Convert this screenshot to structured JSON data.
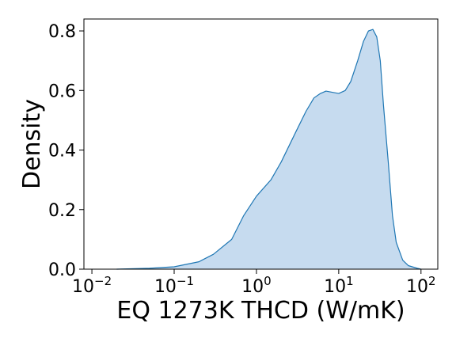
{
  "chart_data": {
    "type": "area",
    "title": "",
    "xlabel": "EQ 1273K THCD (W/mK)",
    "ylabel": "Density",
    "xscale": "log",
    "xlim": [
      0.008,
      160
    ],
    "ylim": [
      0,
      0.84
    ],
    "x_ticks": [
      {
        "value": 0.01,
        "base": "10",
        "exp": "−2"
      },
      {
        "value": 0.1,
        "base": "10",
        "exp": "−1"
      },
      {
        "value": 1,
        "base": "10",
        "exp": "0"
      },
      {
        "value": 10,
        "base": "10",
        "exp": "1"
      },
      {
        "value": 100,
        "base": "10",
        "exp": "2"
      }
    ],
    "y_ticks": [
      {
        "value": 0.0,
        "label": "0.0"
      },
      {
        "value": 0.2,
        "label": "0.2"
      },
      {
        "value": 0.4,
        "label": "0.4"
      },
      {
        "value": 0.6,
        "label": "0.6"
      },
      {
        "value": 0.8,
        "label": "0.8"
      }
    ],
    "grid": false,
    "series": [
      {
        "line_color": "#1f77b4",
        "fill_color": "#c6dbef",
        "x": [
          0.02,
          0.05,
          0.1,
          0.2,
          0.3,
          0.5,
          0.7,
          1.0,
          1.5,
          2.0,
          3.0,
          4.0,
          5.0,
          6.0,
          7.0,
          8.0,
          10.0,
          12.0,
          14.0,
          17.0,
          20.0,
          23.0,
          26.0,
          29.0,
          32.0,
          35.0,
          40.0,
          45.0,
          50.0,
          60.0,
          70.0,
          90.0,
          100.0
        ],
        "y": [
          0.0,
          0.003,
          0.008,
          0.025,
          0.05,
          0.1,
          0.18,
          0.245,
          0.3,
          0.36,
          0.46,
          0.53,
          0.575,
          0.59,
          0.598,
          0.595,
          0.59,
          0.6,
          0.63,
          0.7,
          0.765,
          0.8,
          0.805,
          0.78,
          0.7,
          0.55,
          0.36,
          0.18,
          0.09,
          0.03,
          0.012,
          0.003,
          0.0
        ]
      }
    ]
  }
}
